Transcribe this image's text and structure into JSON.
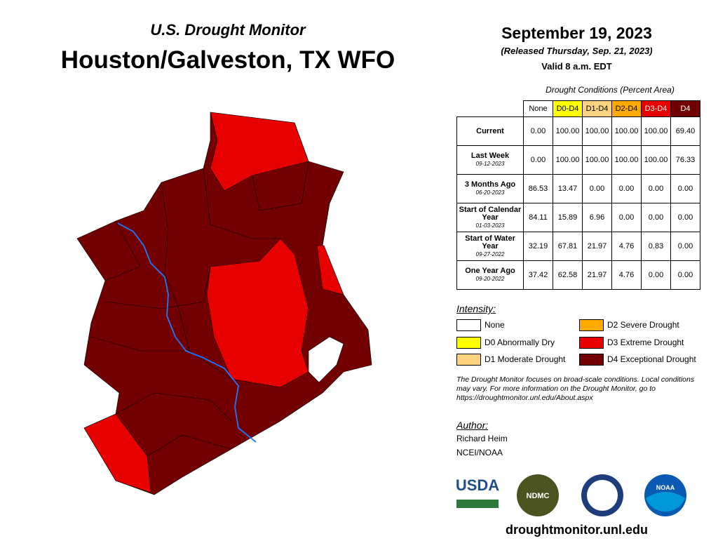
{
  "header": {
    "subtitle": "U.S. Drought Monitor",
    "title": "Houston/Galveston, TX WFO",
    "date": "September 19, 2023",
    "released": "(Released Thursday, Sep. 21, 2023)",
    "valid": "Valid 8 a.m. EDT"
  },
  "table": {
    "caption": "Drought Conditions (Percent Area)",
    "columns": [
      "None",
      "D0-D4",
      "D1-D4",
      "D2-D4",
      "D3-D4",
      "D4"
    ],
    "rows": [
      {
        "label": "Current",
        "date": null,
        "values": [
          "0.00",
          "100.00",
          "100.00",
          "100.00",
          "100.00",
          "69.40"
        ]
      },
      {
        "label": "Last Week",
        "date": "09-12-2023",
        "values": [
          "0.00",
          "100.00",
          "100.00",
          "100.00",
          "100.00",
          "76.33"
        ]
      },
      {
        "label": "3 Months Ago",
        "date": "06-20-2023",
        "values": [
          "86.53",
          "13.47",
          "0.00",
          "0.00",
          "0.00",
          "0.00"
        ]
      },
      {
        "label": "Start of Calendar Year",
        "date": "01-03-2023",
        "values": [
          "84.11",
          "15.89",
          "6.96",
          "0.00",
          "0.00",
          "0.00"
        ]
      },
      {
        "label": "Start of Water Year",
        "date": "09-27-2022",
        "values": [
          "32.19",
          "67.81",
          "21.97",
          "4.76",
          "0.83",
          "0.00"
        ]
      },
      {
        "label": "One Year Ago",
        "date": "09-20-2022",
        "values": [
          "37.42",
          "62.58",
          "21.97",
          "4.76",
          "0.00",
          "0.00"
        ]
      }
    ]
  },
  "legend": {
    "title": "Intensity:",
    "items": [
      {
        "label": "None",
        "color": "#ffffff"
      },
      {
        "label": "D0 Abnormally Dry",
        "color": "#ffff00"
      },
      {
        "label": "D1 Moderate Drought",
        "color": "#fcd37f"
      },
      {
        "label": "D2 Severe Drought",
        "color": "#ffaa00"
      },
      {
        "label": "D3 Extreme Drought",
        "color": "#e60000"
      },
      {
        "label": "D4 Exceptional Drought",
        "color": "#730000"
      }
    ]
  },
  "note": "The Drought Monitor focuses on broad-scale conditions. Local conditions may vary. For more information on the Drought Monitor, go to https://droughtmonitor.unl.edu/About.aspx",
  "author": {
    "title": "Author:",
    "name": "Richard Heim",
    "org": "NCEI/NOAA"
  },
  "logos": [
    "USDA",
    "NDMC",
    "NOAA"
  ],
  "url": "droughtmonitor.unl.edu"
}
